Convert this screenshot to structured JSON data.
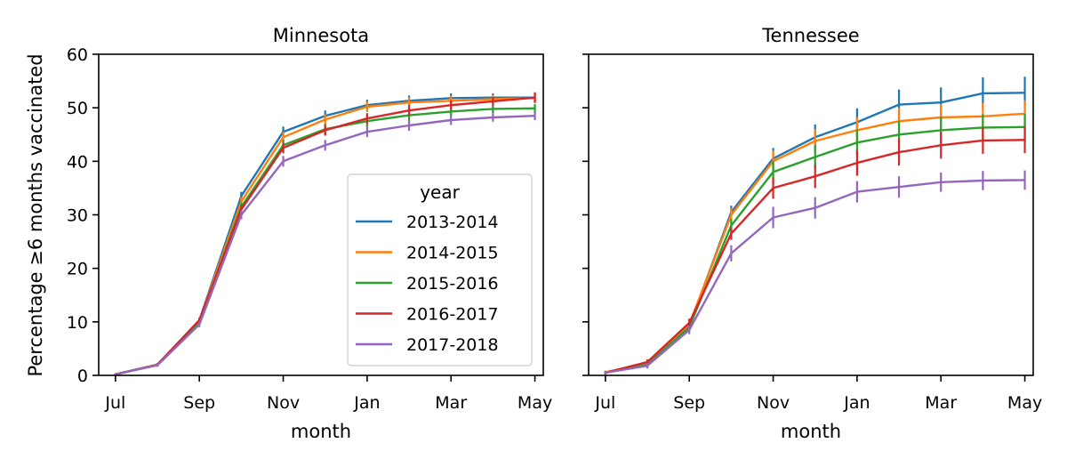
{
  "chart_data": {
    "type": "line",
    "ylabel": "Percentage ≥6 months vaccinated",
    "ylim": [
      0,
      60
    ],
    "yticks": [
      "0",
      "10",
      "20",
      "30",
      "40",
      "50",
      "60"
    ],
    "x": [
      0,
      1,
      2,
      3,
      4,
      5,
      6,
      7,
      8,
      9,
      10
    ],
    "xlim": [
      -0.4,
      10.2
    ],
    "xticks": [
      {
        "pos": 0,
        "label": "Jul"
      },
      {
        "pos": 2,
        "label": "Sep"
      },
      {
        "pos": 4,
        "label": "Nov"
      },
      {
        "pos": 6,
        "label": "Jan"
      },
      {
        "pos": 8,
        "label": "Mar"
      },
      {
        "pos": 10,
        "label": "May"
      }
    ],
    "legend": {
      "title": "year",
      "placement": "lower-right"
    },
    "panels": [
      {
        "title": "Minnesota",
        "xlabel": "month",
        "series": [
          {
            "name": "2013-2014",
            "color": "#1f77b4",
            "values": [
              0.2,
              2.0,
              10.3,
              33.5,
              45.5,
              48.5,
              50.5,
              51.3,
              51.8,
              51.9,
              51.9
            ],
            "errors": [
              0.2,
              0.3,
              0.5,
              0.8,
              1.0,
              1.0,
              1.0,
              1.0,
              0.9,
              0.8,
              0.8
            ]
          },
          {
            "name": "2014-2015",
            "color": "#ff7f0e",
            "values": [
              0.2,
              2.0,
              10.2,
              32.5,
              44.5,
              47.8,
              50.2,
              51.0,
              51.3,
              51.6,
              51.8
            ],
            "errors": [
              0.2,
              0.3,
              0.5,
              0.8,
              1.0,
              1.0,
              1.0,
              1.0,
              0.9,
              0.8,
              0.8
            ]
          },
          {
            "name": "2015-2016",
            "color": "#2ca02c",
            "values": [
              0.2,
              2.0,
              10.0,
              31.5,
              43.0,
              46.0,
              47.5,
              48.6,
              49.3,
              49.8,
              49.9
            ],
            "errors": [
              0.2,
              0.3,
              0.5,
              0.8,
              1.0,
              1.0,
              1.0,
              1.0,
              0.9,
              0.8,
              0.8
            ]
          },
          {
            "name": "2016-2017",
            "color": "#d62728",
            "values": [
              0.2,
              2.0,
              10.3,
              31.0,
              42.5,
              45.8,
              48.0,
              49.5,
              50.5,
              51.2,
              51.9
            ],
            "errors": [
              0.2,
              0.3,
              0.5,
              0.8,
              1.0,
              1.0,
              1.0,
              1.0,
              0.9,
              0.8,
              1.0
            ]
          },
          {
            "name": "2017-2018",
            "color": "#9467bd",
            "values": [
              0.2,
              1.9,
              9.5,
              30.0,
              40.0,
              43.0,
              45.5,
              46.7,
              47.7,
              48.2,
              48.5
            ],
            "errors": [
              0.2,
              0.3,
              0.5,
              0.8,
              1.0,
              1.0,
              1.0,
              1.0,
              0.9,
              0.8,
              0.8
            ]
          }
        ]
      },
      {
        "title": "Tennessee",
        "xlabel": "month",
        "series": [
          {
            "name": "2013-2014",
            "color": "#1f77b4",
            "values": [
              0.5,
              2.0,
              9.2,
              30.5,
              40.5,
              44.5,
              47.3,
              50.6,
              51.0,
              52.7,
              52.8
            ],
            "errors": [
              0.3,
              0.5,
              0.8,
              1.2,
              2.0,
              2.4,
              2.6,
              2.8,
              2.8,
              3.0,
              3.0
            ]
          },
          {
            "name": "2014-2015",
            "color": "#ff7f0e",
            "values": [
              0.6,
              2.3,
              9.5,
              30.0,
              40.0,
              43.8,
              45.8,
              47.5,
              48.2,
              48.4,
              48.9
            ],
            "errors": [
              0.3,
              0.5,
              0.8,
              1.2,
              2.0,
              2.2,
              2.4,
              2.5,
              2.5,
              2.5,
              2.5
            ]
          },
          {
            "name": "2015-2016",
            "color": "#2ca02c",
            "values": [
              0.5,
              2.0,
              9.0,
              28.0,
              38.0,
              40.8,
              43.5,
              45.0,
              45.8,
              46.3,
              46.4
            ],
            "errors": [
              0.3,
              0.5,
              0.8,
              1.2,
              2.0,
              2.2,
              2.4,
              2.5,
              2.5,
              2.5,
              2.5
            ]
          },
          {
            "name": "2016-2017",
            "color": "#d62728",
            "values": [
              0.5,
              2.5,
              9.8,
              26.5,
              35.0,
              37.2,
              39.7,
              41.7,
              43.0,
              43.9,
              44.0
            ],
            "errors": [
              0.3,
              0.5,
              0.8,
              1.2,
              2.0,
              2.2,
              2.4,
              2.5,
              2.5,
              2.5,
              2.5
            ]
          },
          {
            "name": "2017-2018",
            "color": "#9467bd",
            "values": [
              0.5,
              1.8,
              8.5,
              22.8,
              29.5,
              31.3,
              34.3,
              35.2,
              36.1,
              36.4,
              36.5
            ],
            "errors": [
              0.3,
              0.5,
              0.8,
              1.5,
              2.0,
              2.0,
              2.0,
              2.0,
              1.8,
              1.8,
              1.8
            ]
          }
        ]
      }
    ]
  }
}
